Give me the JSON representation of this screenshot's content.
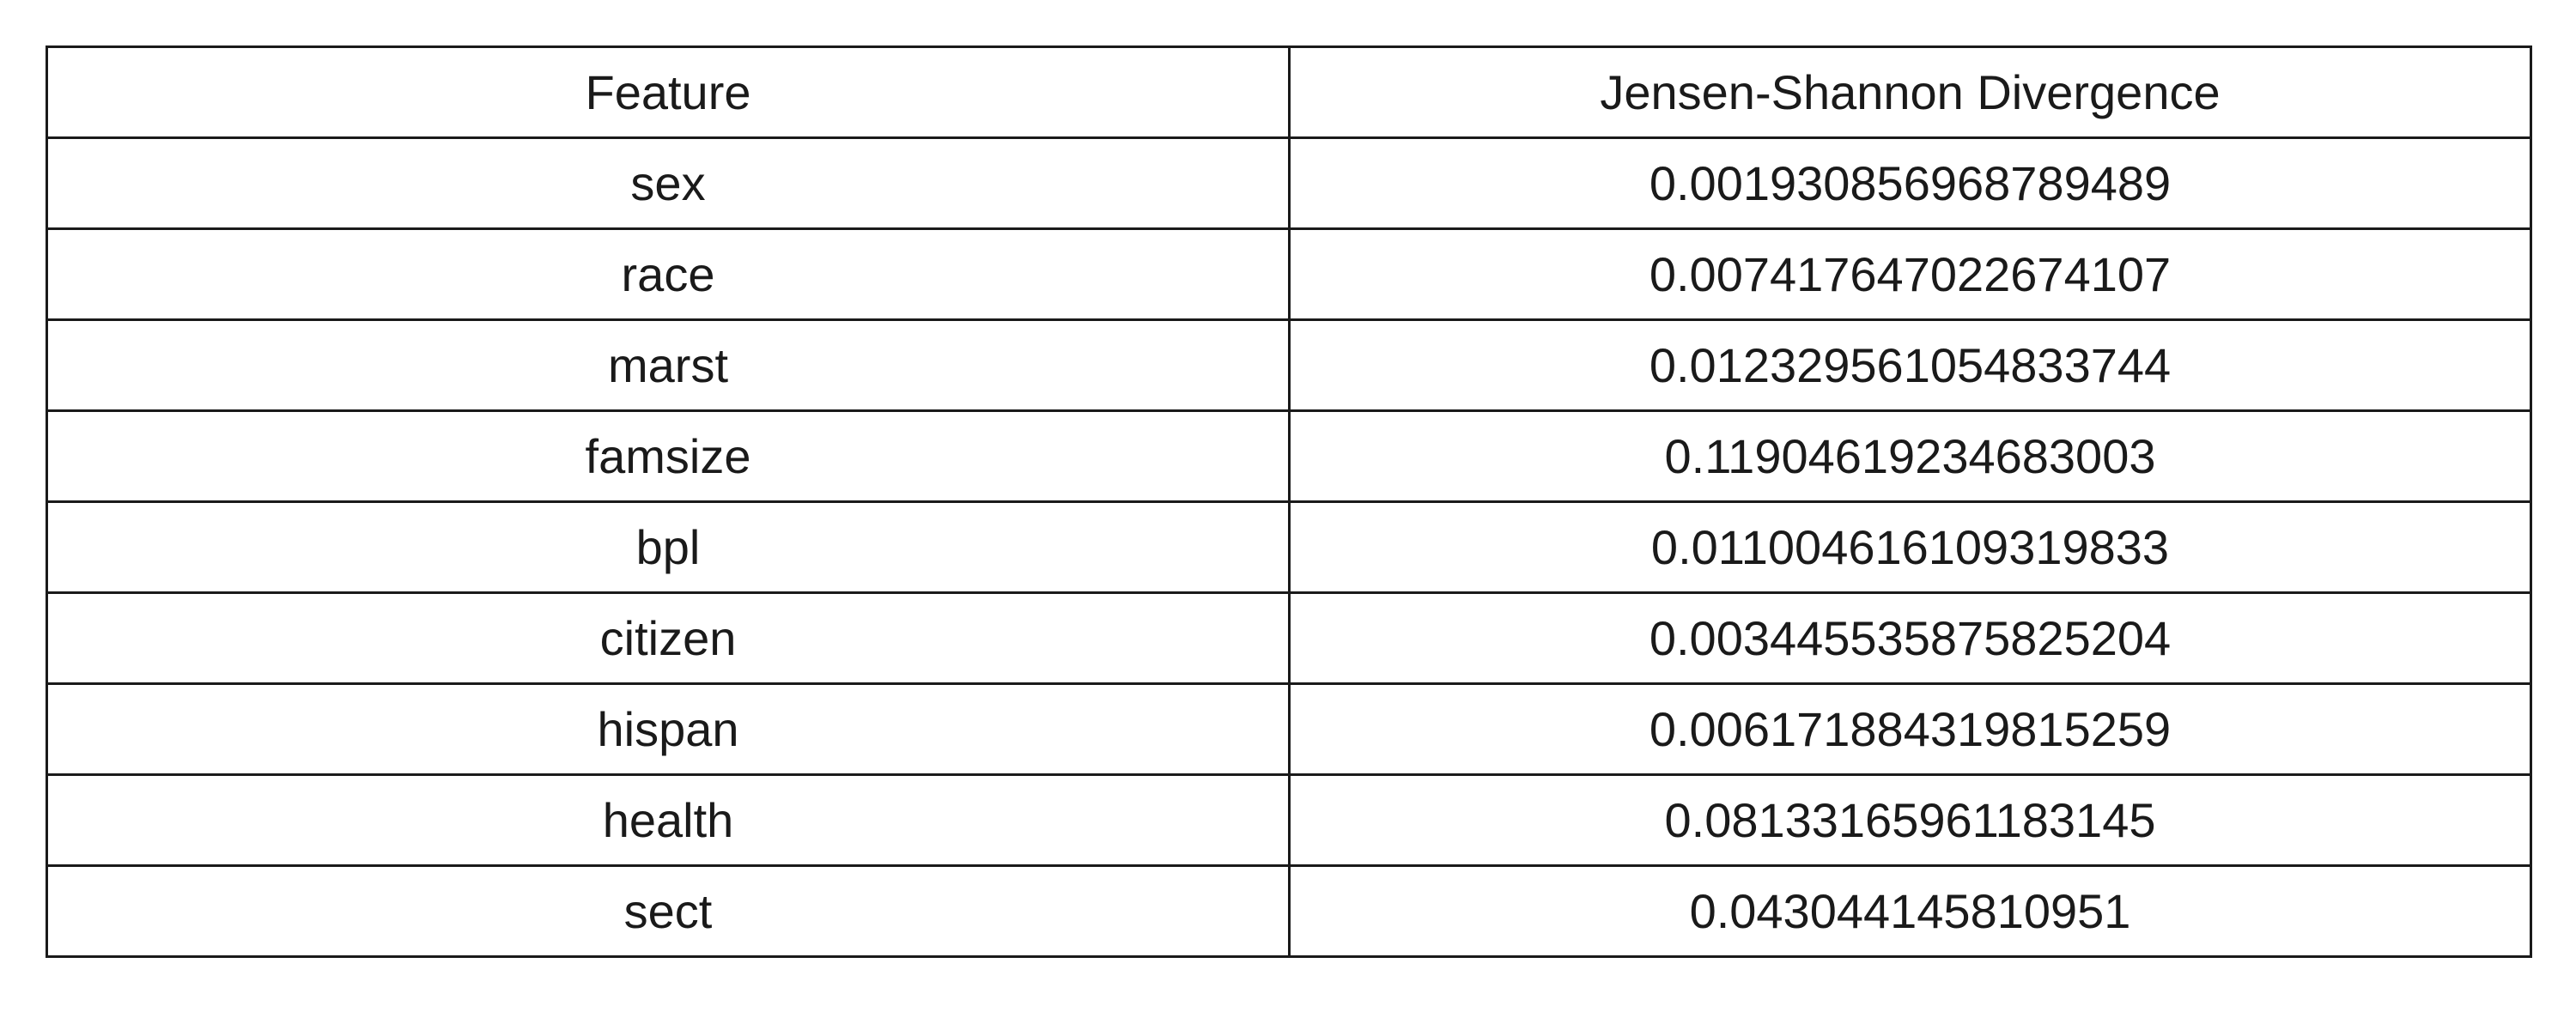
{
  "table": {
    "headers": [
      "Feature",
      "Jensen-Shannon Divergence"
    ],
    "rows": [
      [
        "sex",
        "0.001930856968789489"
      ],
      [
        "race",
        "0.007417647022674107"
      ],
      [
        "marst",
        "0.012329561054833744"
      ],
      [
        "famsize",
        "0.11904619234683003"
      ],
      [
        "bpl",
        "0.011004616109319833"
      ],
      [
        "citizen",
        "0.003445535875825204"
      ],
      [
        "hispan",
        "0.006171884319815259"
      ],
      [
        "health",
        "0.08133165961183145"
      ],
      [
        "sect",
        "0.043044145810951"
      ]
    ]
  }
}
